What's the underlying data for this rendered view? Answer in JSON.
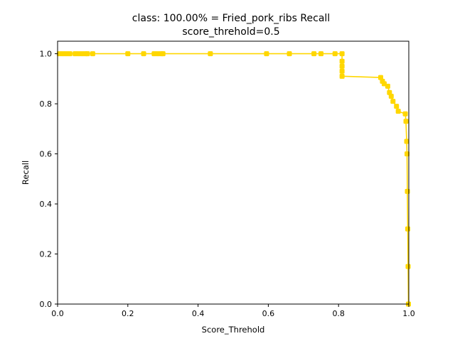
{
  "chart_data": {
    "type": "line",
    "title_line1": "class: 100.00% = Fried_pork_ribs Recall",
    "title_line2": "score_threhold=0.5",
    "xlabel": "Score_Threhold",
    "ylabel": "Recall",
    "xlim": [
      0.0,
      1.0
    ],
    "ylim": [
      0.0,
      1.05
    ],
    "xticks": [
      0.0,
      0.2,
      0.4,
      0.6,
      0.8,
      1.0
    ],
    "xtick_labels": [
      "0.0",
      "0.2",
      "0.4",
      "0.6",
      "0.8",
      "1.0"
    ],
    "yticks": [
      0.0,
      0.2,
      0.4,
      0.6,
      0.8,
      1.0
    ],
    "ytick_labels": [
      "0.0",
      "0.2",
      "0.4",
      "0.6",
      "0.8",
      "1.0"
    ],
    "grid": false,
    "series_color": "#ffd700",
    "series": [
      {
        "x": [
          0.005,
          0.015,
          0.025,
          0.035,
          0.05,
          0.06,
          0.07,
          0.08,
          0.085,
          0.1,
          0.2,
          0.245,
          0.275,
          0.285,
          0.295,
          0.3,
          0.435,
          0.595,
          0.66,
          0.73,
          0.75,
          0.79,
          0.81,
          0.81,
          0.81,
          0.81,
          0.81,
          0.92,
          0.925,
          0.93,
          0.94,
          0.945,
          0.95,
          0.955,
          0.965,
          0.97,
          0.99,
          0.992,
          0.994,
          0.995,
          0.996,
          0.997,
          0.998,
          0.999
        ],
        "y": [
          1.0,
          1.0,
          1.0,
          1.0,
          1.0,
          1.0,
          1.0,
          1.0,
          1.0,
          1.0,
          1.0,
          1.0,
          1.0,
          1.0,
          1.0,
          1.0,
          1.0,
          1.0,
          1.0,
          1.0,
          1.0,
          1.0,
          1.0,
          0.97,
          0.95,
          0.93,
          0.91,
          0.905,
          0.89,
          0.88,
          0.87,
          0.845,
          0.83,
          0.81,
          0.79,
          0.77,
          0.76,
          0.73,
          0.65,
          0.6,
          0.45,
          0.3,
          0.15,
          0.0
        ]
      }
    ]
  }
}
